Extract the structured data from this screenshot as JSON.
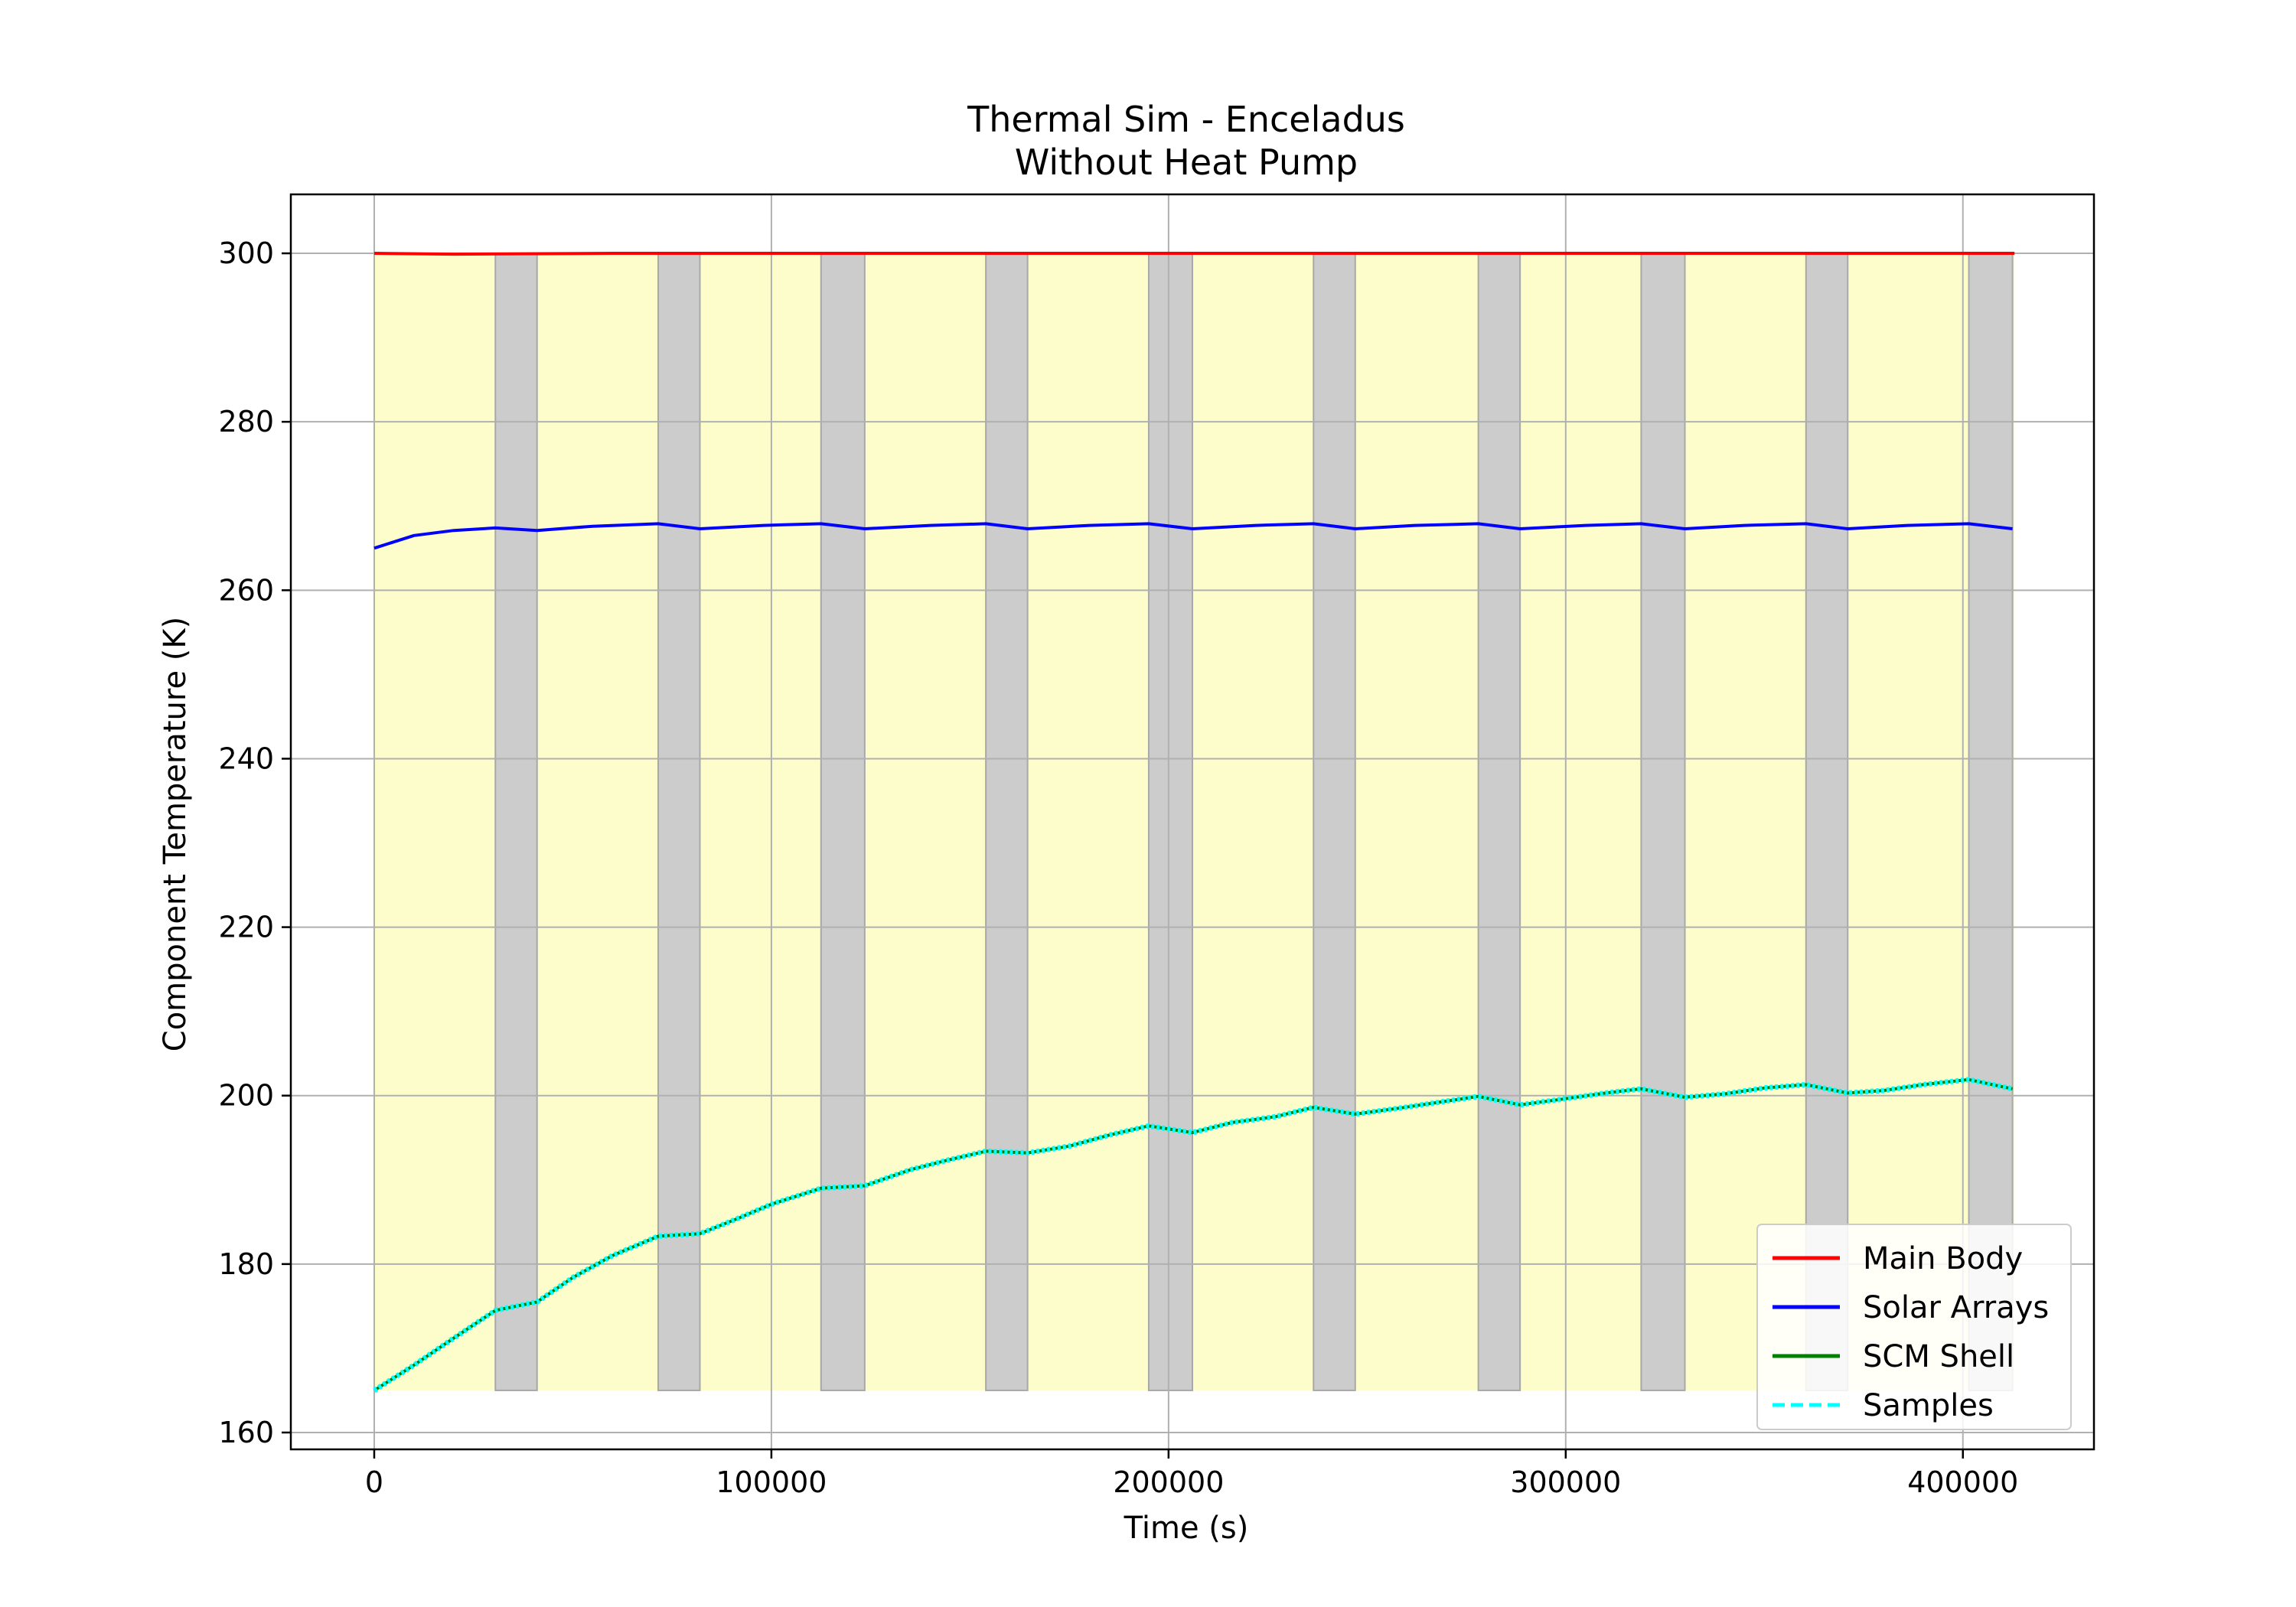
{
  "chart_data": {
    "type": "line",
    "title": "Thermal Sim - Enceladus",
    "subtitle": "Without Heat Pump",
    "xlabel": "Time (s)",
    "ylabel": "Component Temperature (K)",
    "xlim": [
      -21000,
      433000
    ],
    "ylim": [
      158,
      307
    ],
    "xticks": [
      0,
      100000,
      200000,
      300000,
      400000
    ],
    "xtick_labels": [
      "0",
      "100000",
      "200000",
      "300000",
      "400000"
    ],
    "yticks": [
      160,
      180,
      200,
      220,
      240,
      260,
      280,
      300
    ],
    "ytick_labels": [
      "160",
      "180",
      "200",
      "220",
      "240",
      "260",
      "280",
      "300"
    ],
    "grid": true,
    "legend_position": "lower-right",
    "shading": {
      "y_range": [
        165,
        300
      ],
      "sunlit_color": "#fdfdcc",
      "eclipse_color": "#cccccc",
      "sunlit_range": [
        0,
        413000
      ],
      "eclipse_intervals": [
        [
          30500,
          41000
        ],
        [
          71500,
          82000
        ],
        [
          112500,
          123500
        ],
        [
          154000,
          164500
        ],
        [
          195000,
          206000
        ],
        [
          236500,
          247000
        ],
        [
          278000,
          288500
        ],
        [
          319000,
          330000
        ],
        [
          360500,
          371000
        ],
        [
          401500,
          412500
        ]
      ]
    },
    "series": [
      {
        "name": "Main Body",
        "color": "#ff0000",
        "style": "solid",
        "points": [
          [
            0,
            300
          ],
          [
            20000,
            299.9
          ],
          [
            60000,
            300
          ],
          [
            413000,
            300
          ]
        ]
      },
      {
        "name": "Solar Arrays",
        "color": "#0000ff",
        "style": "solid",
        "points": [
          [
            0,
            265
          ],
          [
            10000,
            266.5
          ],
          [
            20000,
            267.1
          ],
          [
            30500,
            267.4
          ],
          [
            41000,
            267.1
          ],
          [
            55000,
            267.6
          ],
          [
            71500,
            267.9
          ],
          [
            82000,
            267.3
          ],
          [
            98000,
            267.7
          ],
          [
            112500,
            267.9
          ],
          [
            123500,
            267.3
          ],
          [
            140000,
            267.7
          ],
          [
            154000,
            267.9
          ],
          [
            164500,
            267.3
          ],
          [
            180000,
            267.7
          ],
          [
            195000,
            267.9
          ],
          [
            206000,
            267.3
          ],
          [
            222000,
            267.7
          ],
          [
            236500,
            267.9
          ],
          [
            247000,
            267.3
          ],
          [
            262000,
            267.7
          ],
          [
            278000,
            267.9
          ],
          [
            288500,
            267.3
          ],
          [
            305000,
            267.7
          ],
          [
            319000,
            267.9
          ],
          [
            330000,
            267.3
          ],
          [
            345000,
            267.7
          ],
          [
            360500,
            267.9
          ],
          [
            371000,
            267.3
          ],
          [
            386000,
            267.7
          ],
          [
            401500,
            267.9
          ],
          [
            412500,
            267.3
          ]
        ]
      },
      {
        "name": "SCM Shell",
        "color": "#008000",
        "style": "solid",
        "points": [
          [
            0,
            165
          ],
          [
            10000,
            168
          ],
          [
            20000,
            171.2
          ],
          [
            30500,
            174.5
          ],
          [
            41000,
            175.5
          ],
          [
            50000,
            178.4
          ],
          [
            60000,
            181
          ],
          [
            71500,
            183.3
          ],
          [
            82000,
            183.6
          ],
          [
            92000,
            185.5
          ],
          [
            100000,
            187.1
          ],
          [
            112500,
            189
          ],
          [
            123500,
            189.3
          ],
          [
            135000,
            191.2
          ],
          [
            144000,
            192.3
          ],
          [
            154000,
            193.4
          ],
          [
            164500,
            193.2
          ],
          [
            175000,
            194
          ],
          [
            185000,
            195.3
          ],
          [
            195000,
            196.4
          ],
          [
            206000,
            195.6
          ],
          [
            216000,
            196.8
          ],
          [
            227000,
            197.5
          ],
          [
            236500,
            198.6
          ],
          [
            247000,
            197.8
          ],
          [
            258000,
            198.5
          ],
          [
            268000,
            199.2
          ],
          [
            278000,
            199.9
          ],
          [
            288500,
            198.9
          ],
          [
            298000,
            199.5
          ],
          [
            310000,
            200.3
          ],
          [
            319000,
            200.8
          ],
          [
            330000,
            199.8
          ],
          [
            340000,
            200.2
          ],
          [
            350000,
            200.9
          ],
          [
            360500,
            201.3
          ],
          [
            371000,
            200.3
          ],
          [
            380000,
            200.6
          ],
          [
            390000,
            201.3
          ],
          [
            401500,
            201.9
          ],
          [
            412500,
            200.8
          ]
        ]
      },
      {
        "name": "Samples",
        "color": "#00ffff",
        "style": "dashed",
        "points": [
          [
            0,
            165
          ],
          [
            10000,
            168
          ],
          [
            20000,
            171.2
          ],
          [
            30500,
            174.5
          ],
          [
            41000,
            175.5
          ],
          [
            50000,
            178.4
          ],
          [
            60000,
            181
          ],
          [
            71500,
            183.3
          ],
          [
            82000,
            183.6
          ],
          [
            92000,
            185.5
          ],
          [
            100000,
            187.1
          ],
          [
            112500,
            189
          ],
          [
            123500,
            189.3
          ],
          [
            135000,
            191.2
          ],
          [
            144000,
            192.3
          ],
          [
            154000,
            193.4
          ],
          [
            164500,
            193.2
          ],
          [
            175000,
            194
          ],
          [
            185000,
            195.3
          ],
          [
            195000,
            196.4
          ],
          [
            206000,
            195.6
          ],
          [
            216000,
            196.8
          ],
          [
            227000,
            197.5
          ],
          [
            236500,
            198.6
          ],
          [
            247000,
            197.8
          ],
          [
            258000,
            198.5
          ],
          [
            268000,
            199.2
          ],
          [
            278000,
            199.9
          ],
          [
            288500,
            198.9
          ],
          [
            298000,
            199.5
          ],
          [
            310000,
            200.3
          ],
          [
            319000,
            200.8
          ],
          [
            330000,
            199.8
          ],
          [
            340000,
            200.2
          ],
          [
            350000,
            200.9
          ],
          [
            360500,
            201.3
          ],
          [
            371000,
            200.3
          ],
          [
            380000,
            200.6
          ],
          [
            390000,
            201.3
          ],
          [
            401500,
            201.9
          ],
          [
            412500,
            200.8
          ]
        ]
      }
    ]
  }
}
